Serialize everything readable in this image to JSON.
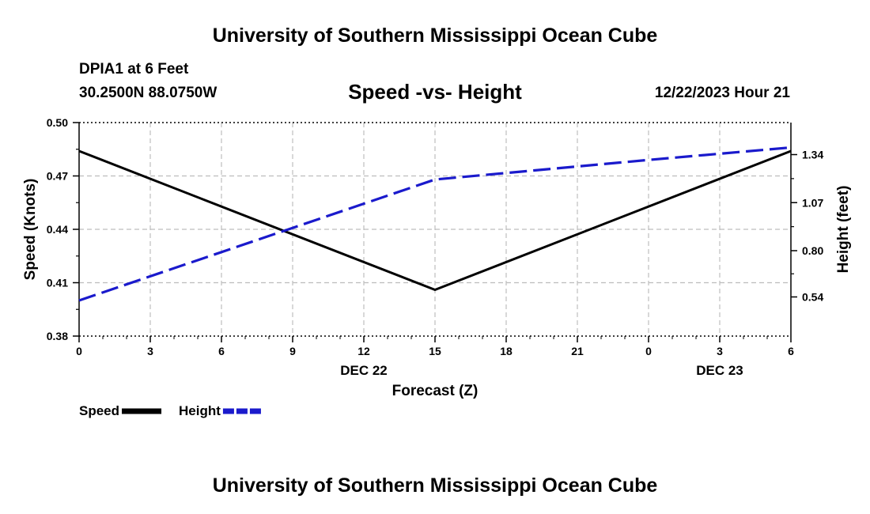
{
  "header": {
    "title": "University of Southern Mississippi Ocean Cube",
    "station": "DPIA1 at 6 Feet",
    "coords": "30.2500N  88.0750W",
    "datetime": "12/22/2023 Hour 21"
  },
  "footer": {
    "title": "University of Southern Mississippi Ocean Cube"
  },
  "chart_data": {
    "type": "line",
    "title": "Speed -vs- Height",
    "xlabel": "Forecast (Z)",
    "ylabel": "Speed (Knots)",
    "y2label": "Height (feet)",
    "x": [
      0,
      15,
      30
    ],
    "x_tick_labels": [
      "0",
      "3",
      "6",
      "9",
      "12",
      "15",
      "18",
      "21",
      "0",
      "3",
      "6"
    ],
    "date_labels": [
      {
        "label": "DEC 22",
        "tick_index": 4
      },
      {
        "label": "DEC 23",
        "tick_index": 9
      }
    ],
    "ylim": [
      0.38,
      0.5
    ],
    "y_ticks": [
      "0.38",
      "0.41",
      "0.44",
      "0.47",
      "0.50"
    ],
    "y2lim": [
      0.32,
      1.52
    ],
    "y2_ticks": [
      "0.54",
      "0.80",
      "1.07",
      "1.34"
    ],
    "grid": true,
    "series": [
      {
        "name": "Speed",
        "axis": "left",
        "color": "#000000",
        "style": "solid",
        "x": [
          0,
          15,
          30
        ],
        "values": [
          0.484,
          0.406,
          0.484
        ]
      },
      {
        "name": "Height",
        "axis": "right",
        "color": "#1a1acc",
        "style": "dashed",
        "x": [
          0,
          15,
          24,
          30
        ],
        "values": [
          0.52,
          1.2,
          1.31,
          1.38
        ]
      }
    ],
    "legend": [
      {
        "label": "Speed",
        "color": "#000000"
      },
      {
        "label": "Height",
        "color": "#1a1acc"
      }
    ]
  }
}
